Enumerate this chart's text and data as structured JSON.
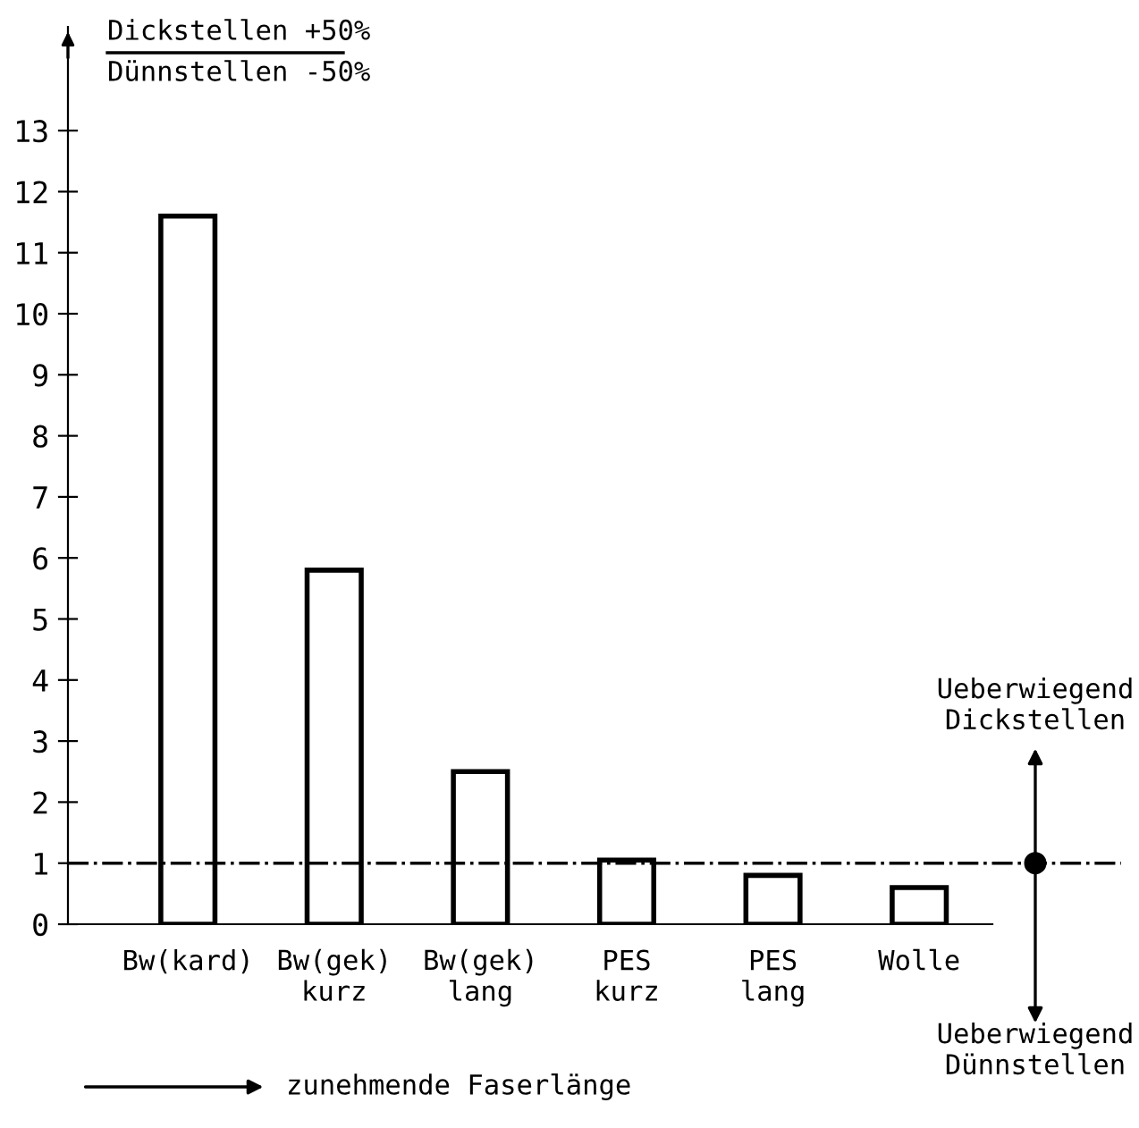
{
  "chart_data": {
    "type": "bar",
    "ylabel": "Dickstellen +50%\nDünnstellen -50%",
    "categories": [
      "Bw(kard)",
      "Bw(gek)\nkurz",
      "Bw(gek)\nlang",
      "PES\nkurz",
      "PES\nlang",
      "Wolle"
    ],
    "values": [
      11.6,
      5.8,
      2.5,
      1.05,
      0.8,
      0.6
    ],
    "color": "#ffffff",
    "ylim": [
      0,
      14.7
    ],
    "yticks": [
      0,
      1,
      2,
      3,
      4,
      5,
      6,
      7,
      8,
      9,
      10,
      11,
      12,
      13
    ],
    "grid": false,
    "ref_lines": [
      {
        "axis": "y",
        "value": 1,
        "line_style": "dashdot"
      }
    ],
    "annotations": [
      "Ueberwiegend\nDickstellen",
      "Ueberwiegend\nDünnstellen",
      "zunehmende Faserlänge"
    ]
  }
}
